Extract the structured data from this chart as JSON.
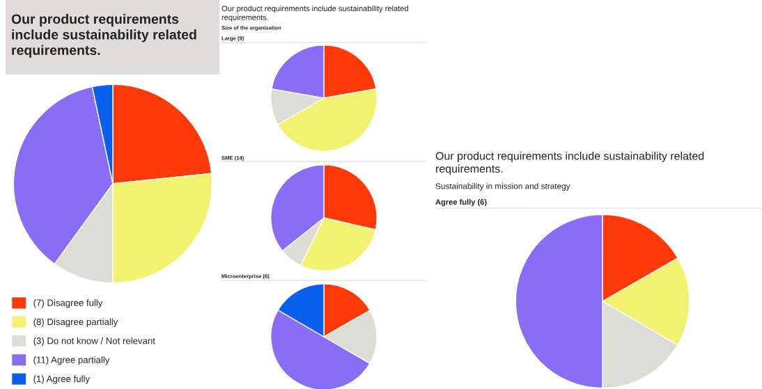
{
  "chart_data": [
    {
      "type": "pie",
      "title": "Our product requirements include sustainability related requirements.",
      "subtitle": "Size of the organization",
      "annotations": [
        "Large (9)"
      ],
      "categories": [
        null,
        null,
        null,
        null
      ],
      "values": [
        22.2,
        44.5,
        11.1,
        22.2
      ],
      "colors": [
        "#ff3a06",
        "#f3f270",
        "#dcded6",
        "#8a6cf5"
      ]
    },
    {
      "type": "pie",
      "title": "Our product requirements include sustainability related requirements.",
      "categories": [
        "(7) Disagree fully",
        "(8) Disagree partially",
        "(3) Do not know / Not relevant",
        "(11) Agree partially",
        "(1) Agree fully"
      ],
      "values": [
        7,
        8,
        3,
        11,
        1
      ],
      "colors": [
        "#ff3a06",
        "#f3f270",
        "#dcded6",
        "#8a6cf5",
        "#0a5fee"
      ],
      "legend": "bottom left"
    },
    {
      "type": "pie",
      "annotations": [
        "SME (14)"
      ],
      "categories": [
        null,
        null,
        null,
        null
      ],
      "values": [
        28.6,
        28.6,
        7.1,
        35.7
      ],
      "colors": [
        "#ff3a06",
        "#f3f270",
        "#dcded6",
        "#8a6cf5"
      ]
    },
    {
      "type": "pie",
      "title": "Our product requirements include sustainability related requirements.",
      "subtitle": "Sustainability in mission and strategy",
      "annotations": [
        "Agree fully (6)"
      ],
      "categories": [
        null,
        null,
        null,
        null
      ],
      "values": [
        16.7,
        16.7,
        16.6,
        50
      ],
      "colors": [
        "#ff3a06",
        "#f3f270",
        "#dcded6",
        "#8a6cf5"
      ]
    },
    {
      "type": "pie",
      "annotations": [
        "Microenterprise (6)"
      ],
      "categories": [
        null,
        null,
        null,
        null
      ],
      "values": [
        16.7,
        16.7,
        50,
        16.6
      ],
      "colors": [
        "#ff3a06",
        "#dcded6",
        "#8a6cf5",
        "#0a5fee"
      ]
    }
  ]
}
